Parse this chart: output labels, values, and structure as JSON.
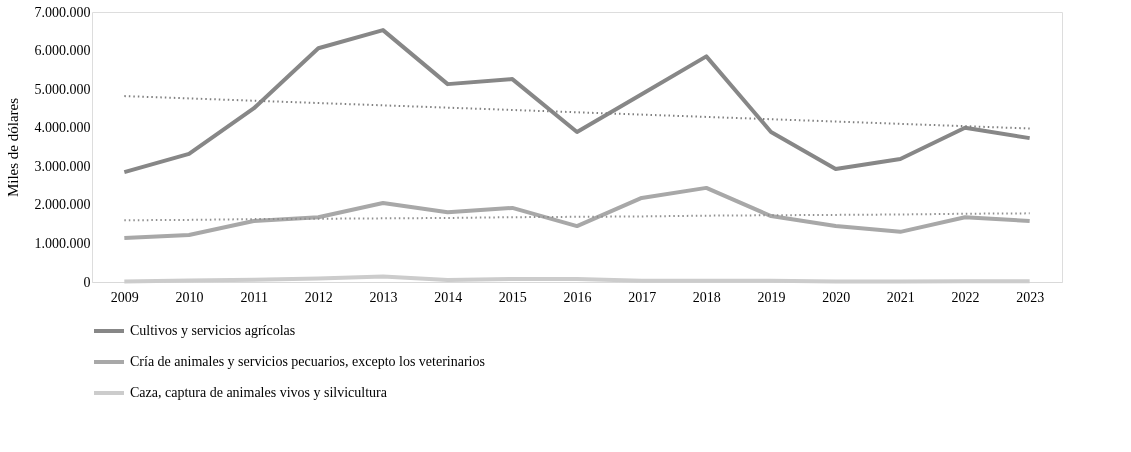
{
  "chart_data": {
    "type": "line",
    "ylabel": "Miles de dólares",
    "categories": [
      "2009",
      "2010",
      "2011",
      "2012",
      "2013",
      "2014",
      "2015",
      "2016",
      "2017",
      "2018",
      "2019",
      "2020",
      "2021",
      "2022",
      "2023"
    ],
    "series": [
      {
        "name": "Cultivos y servicios agrícolas",
        "color": "#878787",
        "values": [
          2850000,
          3320000,
          4500000,
          6060000,
          6530000,
          5130000,
          5260000,
          3890000,
          4870000,
          5850000,
          3890000,
          2930000,
          3190000,
          4000000,
          3730000
        ]
      },
      {
        "name": "Cría de animales y servicios pecuarios, excepto los veterinarios",
        "color": "#a8a8a8",
        "values": [
          1140000,
          1220000,
          1580000,
          1680000,
          2050000,
          1810000,
          1920000,
          1450000,
          2180000,
          2440000,
          1710000,
          1450000,
          1300000,
          1680000,
          1580000
        ]
      },
      {
        "name": "Caza, captura de animales vivos y silvicultura",
        "color": "#cccccc",
        "values": [
          10000,
          40000,
          60000,
          90000,
          140000,
          50000,
          80000,
          80000,
          30000,
          30000,
          30000,
          10000,
          10000,
          20000,
          20000
        ]
      },
      {
        "type": "line",
        "line_style": "dotted",
        "color": "#7f7f7f",
        "values": [
          4820000,
          4760000,
          4700000,
          4640000,
          4580000,
          4520000,
          4460000,
          4400000,
          4340000,
          4280000,
          4220000,
          4160000,
          4100000,
          4040000,
          3980000
        ]
      },
      {
        "type": "line",
        "line_style": "dotted",
        "color": "#8f8f8f",
        "values": [
          1600000,
          1610000,
          1630000,
          1640000,
          1650000,
          1660000,
          1680000,
          1690000,
          1700000,
          1720000,
          1730000,
          1740000,
          1750000,
          1770000,
          1780000
        ]
      }
    ],
    "ylim": [
      0,
      7000000
    ],
    "yticks": [
      {
        "value": 0,
        "label": "0"
      },
      {
        "value": 1000000,
        "label": "1.000.000"
      },
      {
        "value": 2000000,
        "label": "2.000.000"
      },
      {
        "value": 3000000,
        "label": "3.000.000"
      },
      {
        "value": 4000000,
        "label": "4.000.000"
      },
      {
        "value": 5000000,
        "label": "5.000.000"
      },
      {
        "value": 6000000,
        "label": "6.000.000"
      },
      {
        "value": 7000000,
        "label": "7.000.000"
      }
    ],
    "grid": false,
    "legend": "bottom",
    "marker": "none"
  }
}
